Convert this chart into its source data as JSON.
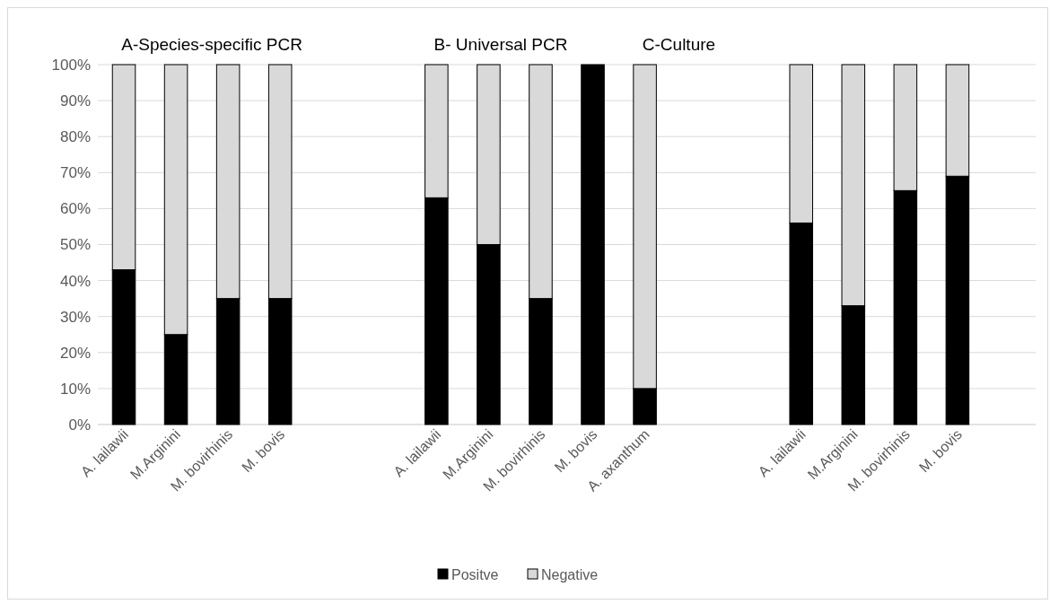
{
  "chart_data": {
    "type": "bar",
    "stacked": true,
    "categories": [
      "A. lailawii",
      "M.Arginini",
      "M. bovirhinis",
      "M. bovis",
      null,
      null,
      "A. lailawii",
      "M.Arginini",
      "M. bovirhinis",
      "M. bovis",
      "A. axanthum",
      null,
      null,
      "A. lailawii",
      "M.Arginini",
      "M. bovirhinis",
      "M. bovis",
      null
    ],
    "series": [
      {
        "name": "Positve",
        "color": "#000000",
        "values": [
          43,
          25,
          35,
          35,
          null,
          null,
          63,
          50,
          35,
          100,
          10,
          null,
          null,
          56,
          33,
          65,
          69,
          null
        ]
      },
      {
        "name": "Negative",
        "color": "#d9d9d9",
        "values": [
          57,
          75,
          65,
          65,
          null,
          null,
          37,
          50,
          65,
          0,
          90,
          null,
          null,
          44,
          67,
          35,
          31,
          null
        ]
      }
    ],
    "ylim": [
      0,
      100
    ],
    "yticks": [
      {
        "value": 0,
        "label": "0%"
      },
      {
        "value": 10,
        "label": "10%"
      },
      {
        "value": 20,
        "label": "20%"
      },
      {
        "value": 30,
        "label": "30%"
      },
      {
        "value": 40,
        "label": "40%"
      },
      {
        "value": 50,
        "label": "50%"
      },
      {
        "value": 60,
        "label": "60%"
      },
      {
        "value": 70,
        "label": "70%"
      },
      {
        "value": 80,
        "label": "80%"
      },
      {
        "value": 90,
        "label": "90%"
      },
      {
        "value": 100,
        "label": "100%"
      }
    ],
    "grid": "y",
    "legend": "bottom",
    "annotations": [
      "A-Species-specific PCR",
      "B- Universal PCR",
      "C-Culture"
    ]
  }
}
